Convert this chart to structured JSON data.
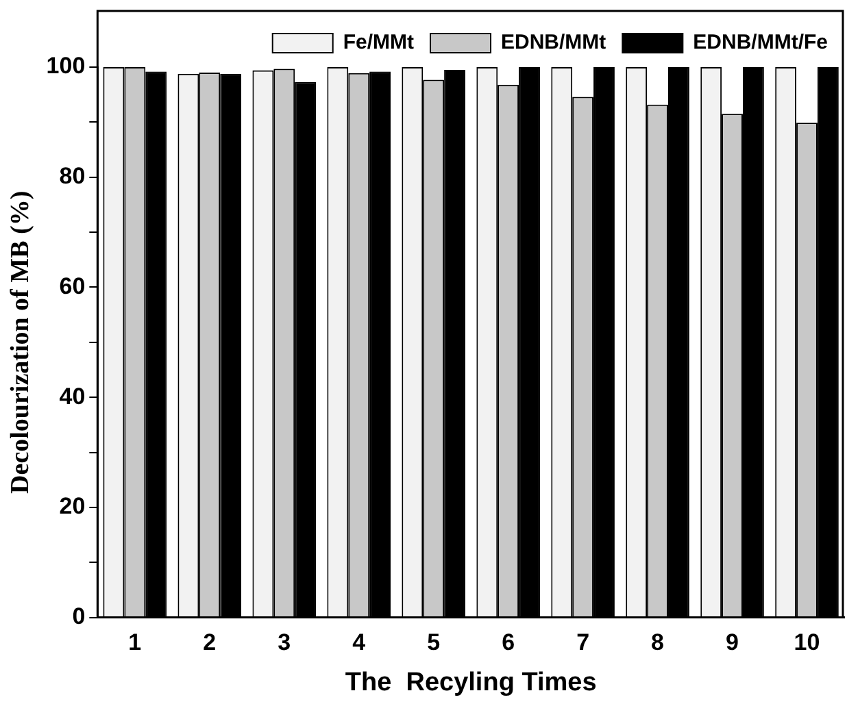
{
  "chart_data": {
    "type": "bar",
    "xlabel": "The  Recyling Times",
    "ylabel": "Decolourization of MB (%)",
    "categories": [
      "1",
      "2",
      "3",
      "4",
      "5",
      "6",
      "7",
      "8",
      "9",
      "10"
    ],
    "series": [
      {
        "name": "Fe/MMt",
        "color": "#f2f2f2",
        "values": [
          100,
          98.8,
          99.4,
          100,
          100,
          100,
          100,
          100,
          100,
          100
        ]
      },
      {
        "name": "EDNB/MMt",
        "color": "#c8c8c8",
        "values": [
          100,
          99.0,
          99.7,
          98.9,
          97.7,
          96.8,
          94.6,
          93.2,
          91.5,
          89.9
        ]
      },
      {
        "name": "EDNB/MMt/Fe",
        "color": "#000000",
        "values": [
          99.2,
          98.8,
          97.3,
          99.2,
          99.5,
          100,
          100,
          100,
          100,
          100
        ]
      }
    ],
    "ylim": [
      0,
      100
    ],
    "yticks": [
      0,
      {
        "value": 10,
        "label": null
      },
      20,
      {
        "value": 30,
        "label": null
      },
      40,
      {
        "value": 50,
        "label": null
      },
      60,
      {
        "value": 70,
        "label": null
      },
      80,
      {
        "value": 90,
        "label": null
      },
      100
    ],
    "legend": "top",
    "grid": false
  }
}
